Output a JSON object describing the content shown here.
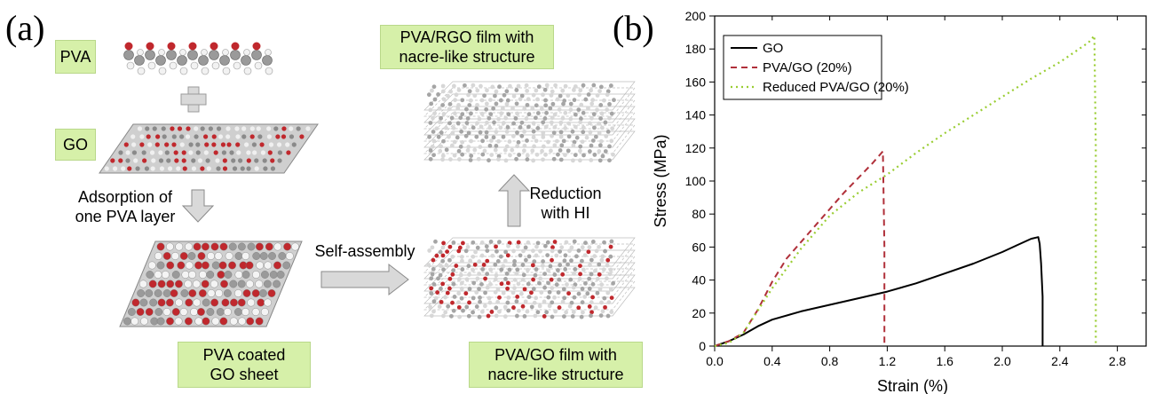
{
  "panel_a": {
    "letter": "(a)",
    "labels": {
      "pva": "PVA",
      "go": "GO",
      "adsorption": "Adsorption of\none PVA layer",
      "pva_coated": "PVA coated\nGO sheet",
      "self_assembly": "Self-assembly",
      "pva_go_film": "PVA/GO film with\nnacre-like structure",
      "reduction": "Reduction\nwith HI",
      "pva_rgo_film": "PVA/RGO film with\nnacre-like structure"
    },
    "colors": {
      "label_box": "#d6f0a9",
      "arrow_fill": "#d9d9d9",
      "oxygen_atom": "#c0282d",
      "carbon_atom": "#8a8a8a"
    }
  },
  "panel_b": {
    "letter": "(b)"
  },
  "chart_data": {
    "type": "line",
    "title": "",
    "xlabel": "Strain (%)",
    "ylabel": "Stress (MPa)",
    "xlim": [
      0.0,
      3.0
    ],
    "ylim": [
      0,
      200
    ],
    "xticks": [
      "0.0",
      "0.4",
      "0.8",
      "1.2",
      "1.6",
      "2.0",
      "2.4",
      "2.8"
    ],
    "yticks": [
      "0",
      "20",
      "40",
      "60",
      "80",
      "100",
      "120",
      "140",
      "160",
      "180",
      "200"
    ],
    "grid": false,
    "legend_position": "top-left",
    "series": [
      {
        "name": "GO",
        "color": "#000000",
        "style": "solid",
        "x": [
          0.0,
          0.1,
          0.2,
          0.3,
          0.4,
          0.6,
          0.8,
          1.0,
          1.2,
          1.4,
          1.6,
          1.8,
          2.0,
          2.1,
          2.2,
          2.25,
          2.26,
          2.27,
          2.28,
          2.28
        ],
        "y": [
          0,
          3,
          7,
          12,
          16,
          21,
          25,
          29,
          33,
          38,
          44,
          50,
          57,
          61,
          65,
          66,
          62,
          50,
          30,
          0
        ]
      },
      {
        "name": "PVA/GO (20%)",
        "color": "#b0303a",
        "style": "dashed",
        "x": [
          0.0,
          0.1,
          0.2,
          0.3,
          0.4,
          0.5,
          0.6,
          0.7,
          0.8,
          0.9,
          1.0,
          1.1,
          1.17,
          1.18,
          1.18
        ],
        "y": [
          0,
          3,
          8,
          22,
          39,
          53,
          63,
          73,
          83,
          93,
          102,
          111,
          118,
          60,
          0
        ]
      },
      {
        "name": "Reduced PVA/GO (20%)",
        "color": "#9acd32",
        "style": "dotted",
        "x": [
          0.0,
          0.1,
          0.2,
          0.4,
          0.6,
          0.8,
          1.0,
          1.2,
          1.4,
          1.6,
          1.8,
          2.0,
          2.2,
          2.4,
          2.6,
          2.64,
          2.65,
          2.65
        ],
        "y": [
          0,
          2,
          8,
          35,
          59,
          79,
          93,
          104,
          117,
          129,
          140,
          151,
          162,
          172,
          184,
          188,
          120,
          0
        ]
      }
    ]
  }
}
